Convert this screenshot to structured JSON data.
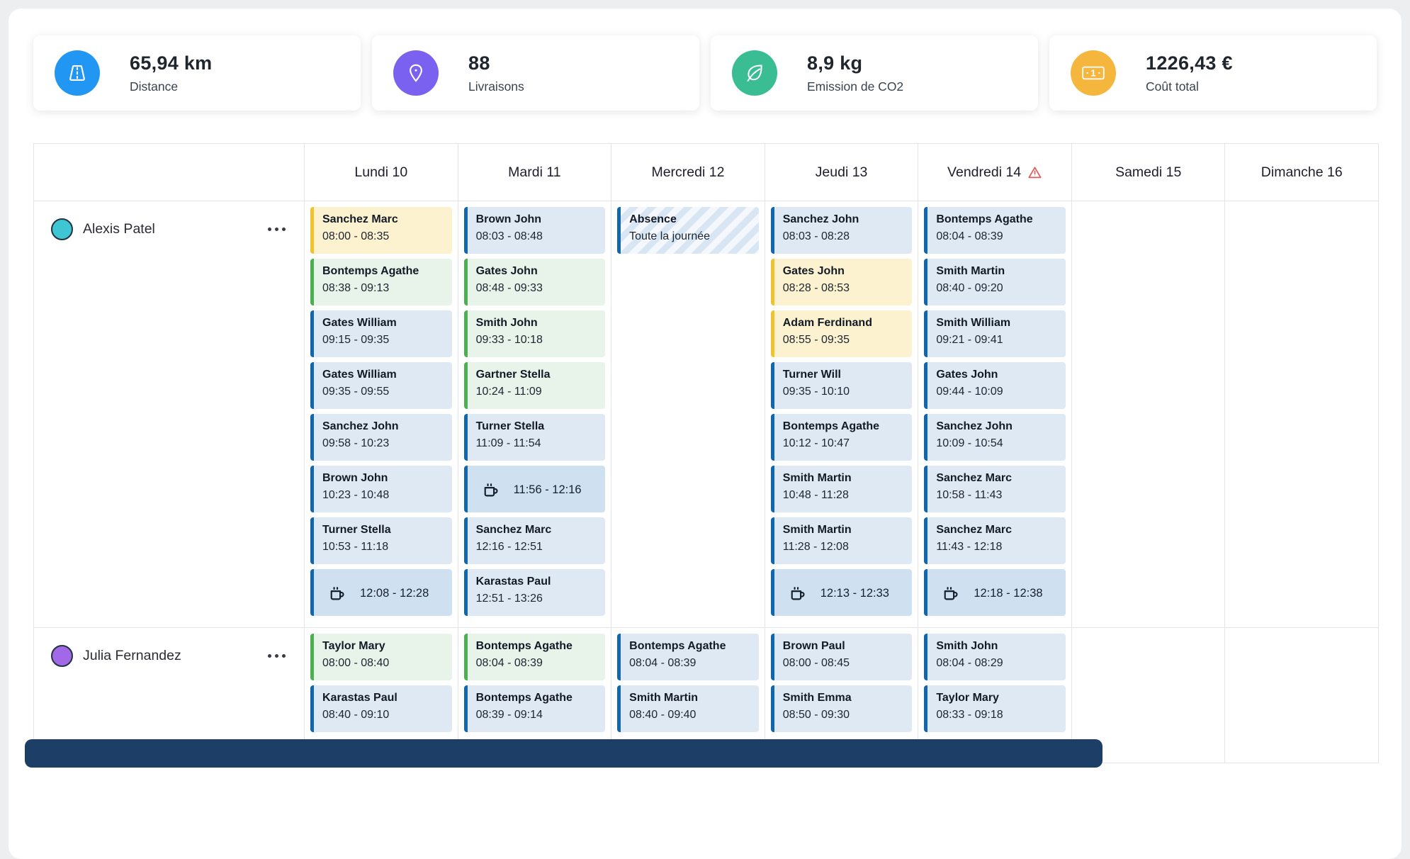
{
  "colors": {
    "stat_blue": "#2196f3",
    "stat_purple": "#7b61f0",
    "stat_green": "#3abd93",
    "stat_orange": "#f5b63e",
    "card_blue_border": "#1166ac",
    "card_blue_bg": "#dfe9f4",
    "card_green_border": "#4caf50",
    "card_green_bg": "#e8f3ea",
    "card_yellow_border": "#efc32f",
    "card_yellow_bg": "#fcf2cf",
    "break_bg": "#cfe1f0",
    "absence_stripe": "#d8e5f3",
    "warning_red": "#e05b5b",
    "scrollbar_dark": "#1d3e66",
    "avatar_border": "#253240"
  },
  "stats": [
    {
      "icon": "road-icon",
      "color": "#2196f3",
      "value": "65,94 km",
      "label": "Distance"
    },
    {
      "icon": "pin-icon",
      "color": "#7b61f0",
      "value": "88",
      "label": "Livraisons"
    },
    {
      "icon": "leaf-icon",
      "color": "#3abd93",
      "value": "8,9 kg",
      "label": "Emission de CO2"
    },
    {
      "icon": "banknote-icon",
      "color": "#f5b63e",
      "value": "1226,43 €",
      "label": "Coût total"
    }
  ],
  "calendar": {
    "break_icon": "coffee-cup-icon",
    "warning_icon": "warning-icon",
    "days": [
      {
        "label": "Lundi 10",
        "warning": false
      },
      {
        "label": "Mardi 11",
        "warning": false
      },
      {
        "label": "Mercredi 12",
        "warning": false
      },
      {
        "label": "Jeudi 13",
        "warning": false
      },
      {
        "label": "Vendredi 14",
        "warning": true
      },
      {
        "label": "Samedi 15",
        "warning": false
      },
      {
        "label": "Dimanche 16",
        "warning": false
      }
    ],
    "rows": [
      {
        "person": "Alexis Patel",
        "avatar_color": "#3ec6d4",
        "menu": "ellipsis",
        "cells": [
          [
            {
              "type": "appt",
              "variant": "yellow",
              "title": "Sanchez Marc",
              "time": "08:00 - 08:35"
            },
            {
              "type": "appt",
              "variant": "green",
              "title": "Bontemps Agathe",
              "time": "08:38 - 09:13"
            },
            {
              "type": "appt",
              "variant": "blue",
              "title": "Gates William",
              "time": "09:15 - 09:35"
            },
            {
              "type": "appt",
              "variant": "blue",
              "title": "Gates William",
              "time": "09:35 - 09:55"
            },
            {
              "type": "appt",
              "variant": "blue",
              "title": "Sanchez John",
              "time": "09:58 - 10:23"
            },
            {
              "type": "appt",
              "variant": "blue",
              "title": "Brown John",
              "time": "10:23 - 10:48"
            },
            {
              "type": "appt",
              "variant": "blue",
              "title": "Turner Stella",
              "time": "10:53 - 11:18"
            },
            {
              "type": "break",
              "time": "12:08 - 12:28"
            }
          ],
          [
            {
              "type": "appt",
              "variant": "blue",
              "title": "Brown John",
              "time": "08:03 - 08:48"
            },
            {
              "type": "appt",
              "variant": "green",
              "title": "Gates John",
              "time": "08:48 - 09:33"
            },
            {
              "type": "appt",
              "variant": "green",
              "title": "Smith John",
              "time": "09:33 - 10:18"
            },
            {
              "type": "appt",
              "variant": "green",
              "title": "Gartner Stella",
              "time": "10:24 - 11:09"
            },
            {
              "type": "appt",
              "variant": "blue",
              "title": "Turner Stella",
              "time": "11:09 - 11:54"
            },
            {
              "type": "break",
              "time": "11:56 - 12:16"
            },
            {
              "type": "appt",
              "variant": "blue",
              "title": "Sanchez Marc",
              "time": "12:16 - 12:51"
            },
            {
              "type": "appt",
              "variant": "blue",
              "title": "Karastas Paul",
              "time": "12:51 - 13:26"
            }
          ],
          [
            {
              "type": "absence",
              "title": "Absence",
              "subtitle": "Toute la journée"
            }
          ],
          [
            {
              "type": "appt",
              "variant": "blue",
              "title": "Sanchez John",
              "time": "08:03 - 08:28"
            },
            {
              "type": "appt",
              "variant": "yellow",
              "title": "Gates John",
              "time": "08:28 - 08:53"
            },
            {
              "type": "appt",
              "variant": "yellow",
              "title": "Adam Ferdinand",
              "time": "08:55 - 09:35"
            },
            {
              "type": "appt",
              "variant": "blue",
              "title": "Turner Will",
              "time": "09:35 - 10:10"
            },
            {
              "type": "appt",
              "variant": "blue",
              "title": "Bontemps Agathe",
              "time": "10:12 - 10:47"
            },
            {
              "type": "appt",
              "variant": "blue",
              "title": "Smith Martin",
              "time": "10:48 - 11:28"
            },
            {
              "type": "appt",
              "variant": "blue",
              "title": "Smith Martin",
              "time": "11:28 - 12:08"
            },
            {
              "type": "break",
              "time": "12:13 - 12:33"
            }
          ],
          [
            {
              "type": "appt",
              "variant": "blue",
              "title": "Bontemps Agathe",
              "time": "08:04 - 08:39"
            },
            {
              "type": "appt",
              "variant": "blue",
              "title": "Smith Martin",
              "time": "08:40 - 09:20"
            },
            {
              "type": "appt",
              "variant": "blue",
              "title": "Smith William",
              "time": "09:21 - 09:41"
            },
            {
              "type": "appt",
              "variant": "blue",
              "title": "Gates John",
              "time": "09:44 - 10:09"
            },
            {
              "type": "appt",
              "variant": "blue",
              "title": "Sanchez John",
              "time": "10:09 - 10:54"
            },
            {
              "type": "appt",
              "variant": "blue",
              "title": "Sanchez Marc",
              "time": "10:58 - 11:43"
            },
            {
              "type": "appt",
              "variant": "blue",
              "title": "Sanchez Marc",
              "time": "11:43 - 12:18"
            },
            {
              "type": "break",
              "time": "12:18 - 12:38"
            }
          ],
          [],
          []
        ]
      },
      {
        "person": "Julia Fernandez",
        "avatar_color": "#a168e8",
        "menu": "ellipsis",
        "cells": [
          [
            {
              "type": "appt",
              "variant": "green",
              "title": "Taylor Mary",
              "time": "08:00 - 08:40"
            },
            {
              "type": "appt",
              "variant": "blue",
              "title": "Karastas Paul",
              "time": "08:40 - 09:10"
            }
          ],
          [
            {
              "type": "appt",
              "variant": "green",
              "title": "Bontemps Agathe",
              "time": "08:04 - 08:39"
            },
            {
              "type": "appt",
              "variant": "blue",
              "title": "Bontemps Agathe",
              "time": "08:39 - 09:14"
            }
          ],
          [
            {
              "type": "appt",
              "variant": "blue",
              "title": "Bontemps Agathe",
              "time": "08:04 - 08:39"
            },
            {
              "type": "appt",
              "variant": "blue",
              "title": "Smith Martin",
              "time": "08:40 - 09:40"
            }
          ],
          [
            {
              "type": "appt",
              "variant": "blue",
              "title": "Brown Paul",
              "time": "08:00 - 08:45"
            },
            {
              "type": "appt",
              "variant": "blue",
              "title": "Smith Emma",
              "time": "08:50 - 09:30"
            }
          ],
          [
            {
              "type": "appt",
              "variant": "blue",
              "title": "Smith John",
              "time": "08:04 - 08:29"
            },
            {
              "type": "appt",
              "variant": "blue",
              "title": "Taylor Mary",
              "time": "08:33 - 09:18"
            }
          ],
          [],
          []
        ]
      }
    ]
  }
}
